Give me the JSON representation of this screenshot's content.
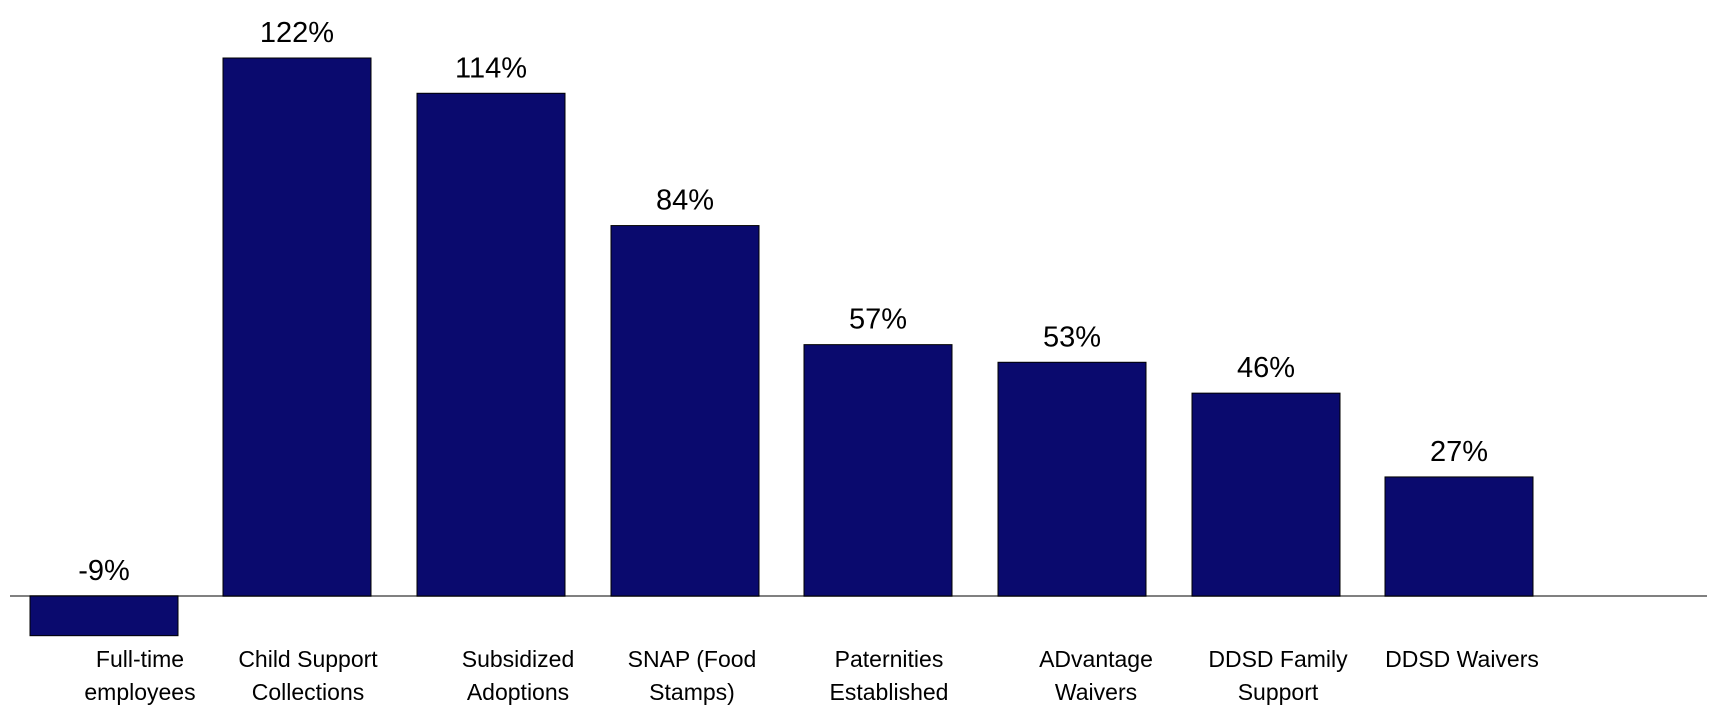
{
  "chart_data": {
    "type": "bar",
    "title": "",
    "xlabel": "",
    "ylabel": "",
    "categories": [
      [
        "Full-time",
        "employees"
      ],
      [
        "Child Support",
        "Collections"
      ],
      [
        "Subsidized",
        "Adoptions"
      ],
      [
        "SNAP (Food",
        "Stamps)"
      ],
      [
        "Paternities",
        "Established"
      ],
      [
        "ADvantage",
        "Waivers"
      ],
      [
        "DDSD Family",
        "Support"
      ],
      [
        "DDSD Waivers"
      ]
    ],
    "values": [
      -9,
      122,
      114,
      84,
      57,
      53,
      46,
      27
    ],
    "data_labels": [
      "-9%",
      "122%",
      "114%",
      "84%",
      "57%",
      "53%",
      "46%",
      "27%"
    ],
    "unit": "%",
    "ylim": [
      -9,
      122
    ],
    "grid": false,
    "legend": "none",
    "bar_color": "#0a0a6e",
    "axis_color": "#808080"
  }
}
